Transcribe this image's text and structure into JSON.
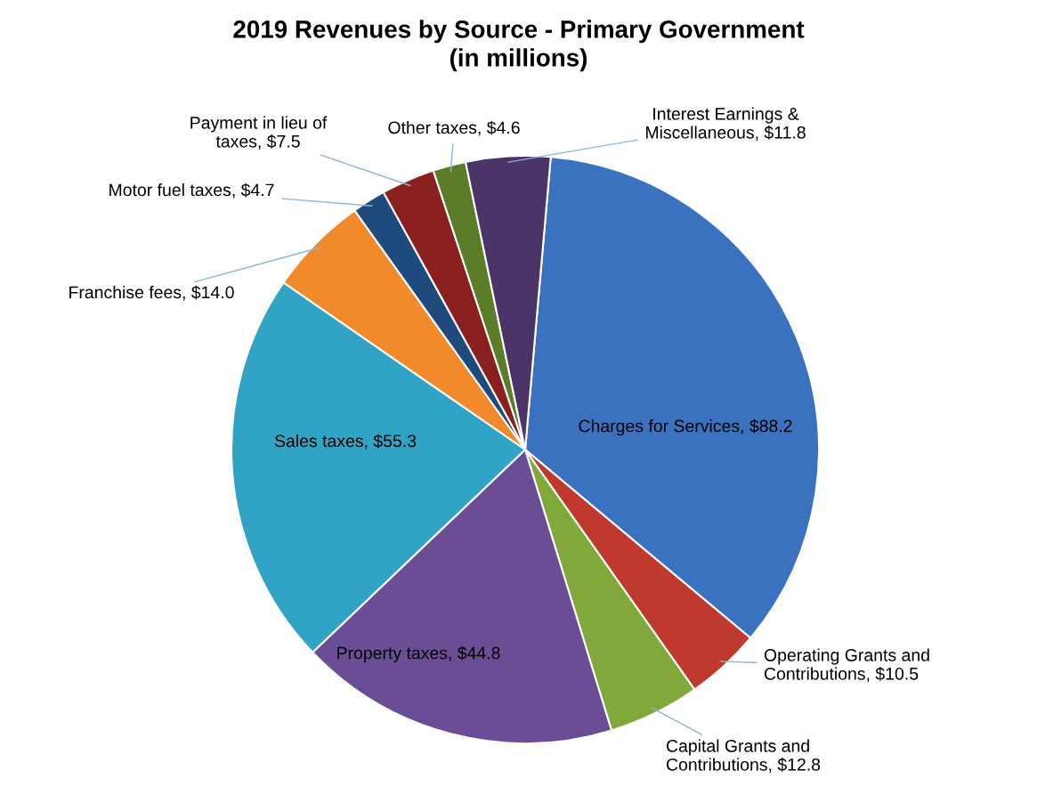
{
  "chart_data": {
    "type": "pie",
    "title": "2019 Revenues by Source - Primary Government\n(in millions)",
    "categories": [
      "Charges for Services",
      "Operating Grants and Contributions",
      "Capital Grants and Contributions",
      "Property taxes",
      "Sales taxes",
      "Franchise fees",
      "Motor fuel taxes",
      "Payment in lieu of taxes",
      "Other taxes",
      "Interest Earnings & Miscellaneous"
    ],
    "values": [
      88.2,
      10.5,
      12.8,
      44.8,
      55.3,
      14.0,
      4.7,
      7.5,
      4.6,
      11.8
    ],
    "value_labels": [
      "$88.2",
      "$10.5",
      "$12.8",
      "$44.8",
      "$55.3",
      "$14.0",
      "$4.7",
      "$7.5",
      "$4.6",
      "$11.8"
    ],
    "colors": [
      "#3b72c0",
      "#c0392f",
      "#80a83a",
      "#6b4d96",
      "#31a3c4",
      "#f08a2b",
      "#1f4a7d",
      "#8b2020",
      "#5c7d28",
      "#4a3468"
    ],
    "legend": false
  }
}
